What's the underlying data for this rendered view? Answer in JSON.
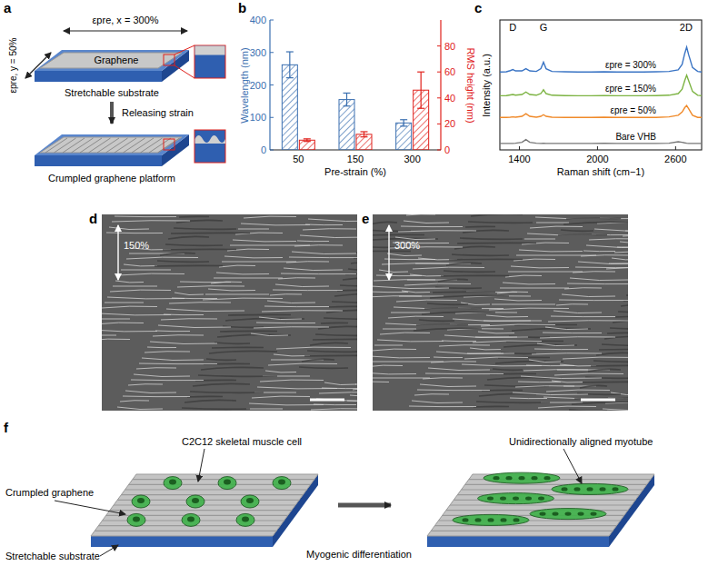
{
  "panel_labels": [
    "a",
    "b",
    "c",
    "d",
    "e",
    "f"
  ],
  "schematic_a": {
    "strain_x": "εpre, x = 300%",
    "strain_y": "εpre, y = 50%",
    "graphene": "Graphene",
    "substrate": "Stretchable substrate",
    "release": "Releasing strain",
    "platform": "Crumpled graphene platform"
  },
  "chart_data": [
    {
      "type": "bar",
      "categories": [
        "50",
        "150",
        "300"
      ],
      "x_label": "Pre-strain (%)",
      "y_label": "Wavelength (nm)",
      "y2_label": "RMS height (nm)",
      "ylim": [
        0,
        400
      ],
      "yticks": [
        0,
        100,
        200,
        300,
        400
      ],
      "y2lim": [
        0,
        100
      ],
      "y2ticks": [
        0,
        20,
        40,
        60,
        80
      ],
      "series": [
        {
          "color": "#3a6fb0",
          "values": [
            262,
            155,
            83
          ],
          "errors": [
            40,
            20,
            10
          ]
        },
        {
          "color": "#e0201b",
          "axis": "y2",
          "values": [
            7.5,
            12,
            46
          ],
          "errors": [
            1,
            2,
            14
          ]
        }
      ]
    },
    {
      "type": "line",
      "x_label": "Raman shift (cm−1)",
      "y_label": "Intensity (a.u.)",
      "tick_labels": "x",
      "xlim": [
        1250,
        2800
      ],
      "xticks": [
        1400,
        2000,
        2600
      ],
      "ylim": [
        0,
        12
      ],
      "x": [
        1250,
        1300,
        1330,
        1350,
        1370,
        1420,
        1450,
        1480,
        1530,
        1565,
        1585,
        1605,
        1650,
        1750,
        1850,
        1950,
        2050,
        2150,
        2250,
        2350,
        2450,
        2550,
        2620,
        2650,
        2670,
        2685,
        2700,
        2730,
        2770,
        2800
      ],
      "series": [
        {
          "name": "εpre = 300%",
          "color": "#3a74c4",
          "values": [
            7.2,
            7.22,
            7.32,
            7.42,
            7.3,
            7.3,
            7.5,
            7.3,
            7.25,
            7.5,
            8.1,
            7.5,
            7.25,
            7.22,
            7.2,
            7.2,
            7.22,
            7.2,
            7.2,
            7.2,
            7.22,
            7.25,
            7.4,
            7.9,
            8.9,
            9.5,
            8.8,
            7.6,
            7.25,
            7.2
          ]
        },
        {
          "name": "εpre = 150%",
          "color": "#7cb342",
          "values": [
            5.0,
            5.02,
            5.08,
            5.12,
            5.06,
            5.12,
            5.35,
            5.12,
            5.05,
            5.2,
            5.55,
            5.2,
            5.05,
            5.02,
            5.0,
            5.0,
            5.02,
            5.0,
            5.0,
            5.0,
            5.02,
            5.05,
            5.2,
            5.6,
            6.4,
            6.9,
            6.4,
            5.4,
            5.05,
            5.0
          ]
        },
        {
          "name": "εpre = 50%",
          "color": "#f08a2a",
          "values": [
            3.0,
            3.0,
            3.02,
            3.05,
            3.02,
            3.1,
            3.35,
            3.1,
            3.02,
            3.1,
            3.25,
            3.1,
            3.02,
            3.0,
            3.0,
            3.0,
            3.02,
            3.0,
            3.0,
            3.0,
            3.0,
            3.05,
            3.2,
            3.5,
            3.9,
            4.1,
            3.8,
            3.2,
            3.0,
            3.0
          ]
        },
        {
          "name": "Bare VHB",
          "color": "#777777",
          "values": [
            0.6,
            0.6,
            0.6,
            0.6,
            0.62,
            0.7,
            0.95,
            0.7,
            0.62,
            0.6,
            0.62,
            0.6,
            0.6,
            0.6,
            0.6,
            0.6,
            0.62,
            0.6,
            0.6,
            0.6,
            0.6,
            0.62,
            0.75,
            0.7,
            0.65,
            0.62,
            0.6,
            0.6,
            0.6,
            0.6
          ]
        }
      ],
      "annotations": [
        {
          "text": "D",
          "x": 1350
        },
        {
          "text": "G",
          "x": 1585
        },
        {
          "text": "2D",
          "x": 2680
        }
      ]
    }
  ],
  "sem_images": [
    {
      "strain_label": "150%"
    },
    {
      "strain_label": "300%"
    }
  ],
  "schematic_f": {
    "cell": "C2C12 skeletal muscle cell",
    "graphene": "Crumpled graphene",
    "substrate": "Stretchable substrate",
    "process": "Myogenic differentiation",
    "myotube": "Unidirectionally aligned myotube"
  }
}
